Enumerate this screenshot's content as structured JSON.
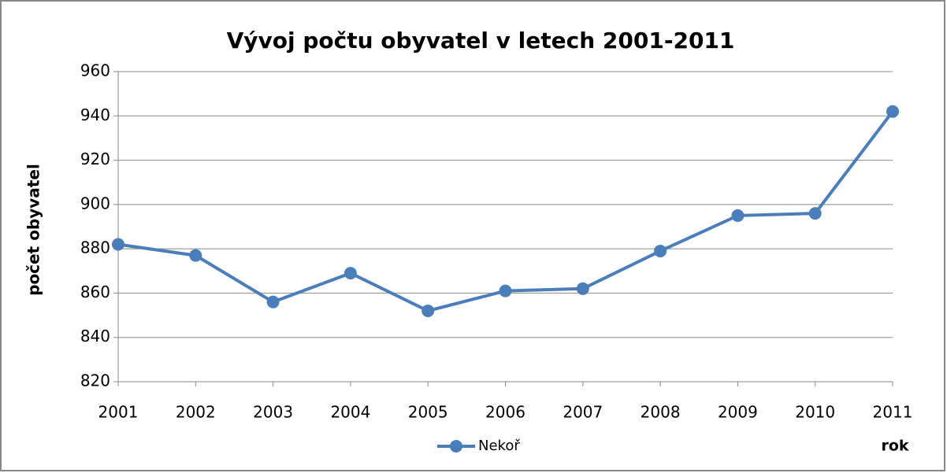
{
  "chart_data": {
    "type": "line",
    "title": "Vývoj počtu obyvatel v letech 2001-2011",
    "y_label": "počet obyvatel",
    "x_label": "rok",
    "categories": [
      "2001",
      "2002",
      "2003",
      "2004",
      "2005",
      "2006",
      "2007",
      "2008",
      "2009",
      "2010",
      "2011"
    ],
    "series": [
      {
        "name": "Nekoř",
        "color": "#4a7ebb",
        "values": [
          882,
          877,
          856,
          869,
          852,
          861,
          862,
          879,
          895,
          896,
          942
        ]
      }
    ],
    "ylim": [
      820,
      960
    ],
    "yticks": [
      820,
      840,
      860,
      880,
      900,
      920,
      940,
      960
    ],
    "grid": true,
    "legend": "bottom"
  }
}
